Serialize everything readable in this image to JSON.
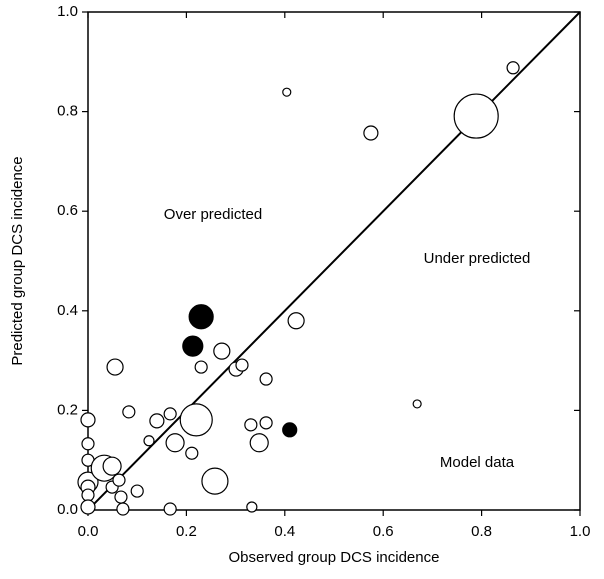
{
  "chart_data": {
    "type": "scatter",
    "x_label": "Observed group DCS incidence",
    "y_label": "Predicted group DCS incidence",
    "annotations": [
      "Over predicted",
      "Under predicted",
      "Model data"
    ],
    "xlim": [
      0,
      1
    ],
    "ylim": [
      0,
      1
    ],
    "xticks": [
      {
        "value": 0,
        "label": "0.0"
      },
      {
        "value": 0.2,
        "label": "0.2"
      },
      {
        "value": 0.4,
        "label": "0.4"
      },
      {
        "value": 0.6,
        "label": "0.6"
      },
      {
        "value": 0.8,
        "label": "0.8"
      },
      {
        "value": 1,
        "label": "1.0"
      }
    ],
    "yticks": [
      {
        "value": 0,
        "label": "0.0"
      },
      {
        "value": 0.2,
        "label": "0.2"
      },
      {
        "value": 0.4,
        "label": "0.4"
      },
      {
        "value": 0.6,
        "label": "0.6"
      },
      {
        "value": 0.8,
        "label": "0.8"
      },
      {
        "value": 1,
        "label": "1.0"
      }
    ],
    "series": [
      {
        "color": "#ffffff",
        "x": [
          0.864,
          0.789,
          0.404,
          0.575,
          0.669,
          0.423,
          0.055,
          0.083,
          0.272,
          0.23,
          0.301,
          0.313,
          0.362,
          0.22,
          0.14,
          0.167,
          0.177,
          0.124,
          0.211,
          0.331,
          0.362,
          0.348,
          0.258,
          0.333,
          0,
          0,
          0,
          0,
          0,
          0,
          0,
          0.033,
          0.049,
          0.049,
          0.063,
          0.067,
          0.071,
          0.1,
          0.167
        ],
        "values": [
          0.888,
          0.791,
          0.839,
          0.757,
          0.213,
          0.38,
          0.287,
          0.197,
          0.319,
          0.287,
          0.283,
          0.291,
          0.263,
          0.181,
          0.179,
          0.193,
          0.135,
          0.139,
          0.114,
          0.171,
          0.175,
          0.135,
          0.058,
          0.006,
          0.181,
          0.133,
          0.1,
          0.056,
          0.046,
          0.03,
          0.006,
          0.084,
          0.088,
          0.046,
          0.06,
          0.026,
          0.002,
          0.038,
          0.002
        ],
        "sizes": [
          6,
          22,
          4,
          7,
          4,
          8,
          8,
          6,
          8,
          6,
          7,
          6,
          6,
          16,
          7,
          6,
          9,
          5,
          6,
          6,
          6,
          9,
          13,
          5,
          7,
          6,
          6,
          10,
          7,
          6,
          7,
          13,
          9,
          6,
          6,
          6,
          6,
          6,
          6
        ]
      },
      {
        "color": "#000000",
        "x": [
          0.23,
          0.213,
          0.41
        ],
        "values": [
          0.388,
          0.329,
          0.161
        ],
        "sizes": [
          12,
          10,
          7
        ]
      }
    ]
  }
}
